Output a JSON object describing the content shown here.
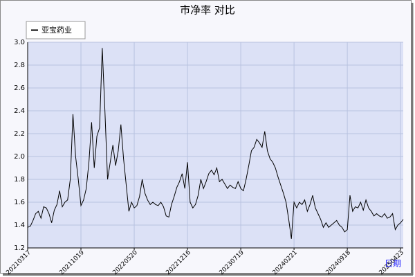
{
  "chart_data": {
    "type": "line",
    "title": "市净率  对比",
    "x_label": "日期",
    "categories": [
      "20210317",
      null,
      null,
      null,
      null,
      null,
      null,
      null,
      null,
      null,
      null,
      null,
      null,
      null,
      null,
      null,
      null,
      null,
      null,
      null,
      "20211019",
      null,
      null,
      null,
      null,
      null,
      null,
      null,
      null,
      null,
      null,
      null,
      null,
      null,
      null,
      null,
      null,
      null,
      null,
      null,
      "20220520",
      null,
      null,
      null,
      null,
      null,
      null,
      null,
      null,
      null,
      null,
      null,
      null,
      null,
      null,
      null,
      null,
      null,
      null,
      null,
      "20221216",
      null,
      null,
      null,
      null,
      null,
      null,
      null,
      null,
      null,
      null,
      null,
      null,
      null,
      null,
      null,
      null,
      null,
      null,
      null,
      "20230719",
      null,
      null,
      null,
      null,
      null,
      null,
      null,
      null,
      null,
      null,
      null,
      null,
      null,
      null,
      null,
      null,
      null,
      null,
      null,
      "20240221",
      null,
      null,
      null,
      null,
      null,
      null,
      null,
      null,
      null,
      null,
      null,
      null,
      null,
      null,
      null,
      null,
      null,
      null,
      null,
      "20240918",
      null,
      null,
      null,
      null,
      null,
      null,
      null,
      null,
      null,
      null,
      null,
      null,
      null,
      null,
      null,
      null,
      null,
      null,
      null,
      "20250423",
      null
    ],
    "series": [
      {
        "name": "亚宝药业",
        "color": "#000000",
        "values": [
          1.38,
          1.39,
          1.44,
          1.5,
          1.52,
          1.46,
          1.56,
          1.55,
          1.5,
          1.42,
          1.53,
          1.58,
          1.7,
          1.56,
          1.6,
          1.62,
          1.8,
          2.37,
          2.0,
          1.8,
          1.57,
          1.62,
          1.72,
          1.95,
          2.3,
          1.9,
          2.18,
          2.25,
          2.95,
          2.4,
          1.8,
          1.95,
          2.1,
          1.92,
          2.05,
          2.28,
          1.98,
          1.75,
          1.52,
          1.6,
          1.55,
          1.57,
          1.65,
          1.8,
          1.68,
          1.62,
          1.58,
          1.6,
          1.58,
          1.57,
          1.6,
          1.56,
          1.48,
          1.47,
          1.58,
          1.65,
          1.73,
          1.78,
          1.85,
          1.72,
          1.95,
          1.6,
          1.55,
          1.58,
          1.66,
          1.8,
          1.72,
          1.78,
          1.85,
          1.88,
          1.84,
          1.9,
          1.78,
          1.8,
          1.76,
          1.72,
          1.75,
          1.73,
          1.72,
          1.78,
          1.72,
          1.7,
          1.8,
          1.92,
          2.05,
          2.08,
          2.15,
          2.12,
          2.08,
          2.22,
          2.05,
          1.98,
          1.95,
          1.9,
          1.82,
          1.75,
          1.68,
          1.6,
          1.45,
          1.28,
          1.6,
          1.55,
          1.6,
          1.58,
          1.62,
          1.52,
          1.58,
          1.66,
          1.55,
          1.5,
          1.45,
          1.38,
          1.42,
          1.38,
          1.4,
          1.42,
          1.44,
          1.4,
          1.38,
          1.34,
          1.36,
          1.66,
          1.52,
          1.56,
          1.55,
          1.6,
          1.53,
          1.62,
          1.55,
          1.52,
          1.48,
          1.5,
          1.48,
          1.47,
          1.5,
          1.46,
          1.47,
          1.5,
          1.36,
          1.4,
          1.42,
          1.45
        ]
      }
    ],
    "ylim": [
      1.2,
      3.0
    ],
    "yticks": [
      1.2,
      1.4,
      1.6,
      1.8,
      {
        "value": 2.0,
        "label": "2.0"
      },
      2.2,
      2.4,
      2.6,
      2.8,
      {
        "value": 3.0,
        "label": "3.0"
      }
    ],
    "grid": true,
    "legend": "top-left"
  }
}
